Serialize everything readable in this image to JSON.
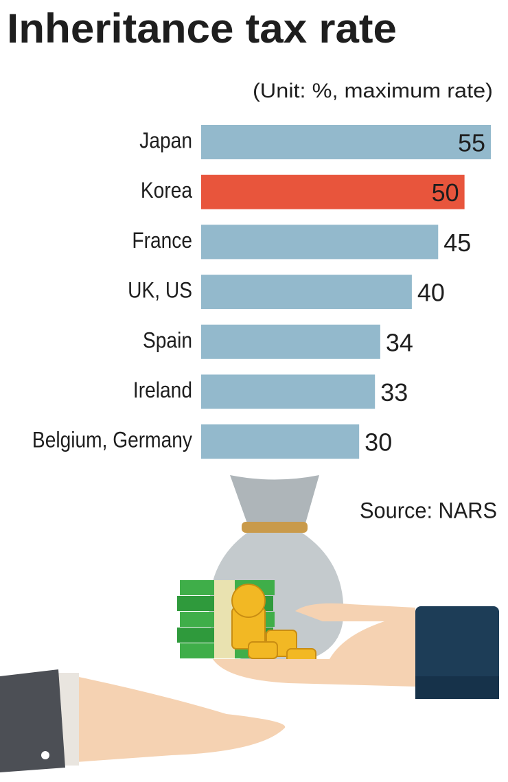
{
  "chart_data": {
    "type": "bar",
    "orientation": "horizontal",
    "title": "Inheritance tax rate",
    "subtitle": "(Unit: %, maximum rate)",
    "source": "Source: NARS",
    "categories": [
      "Japan",
      "Korea",
      "France",
      "UK, US",
      "Spain",
      "Ireland",
      "Belgium, Germany"
    ],
    "values": [
      55,
      50,
      45,
      40,
      34,
      33,
      30
    ],
    "color": "#93b9cc",
    "colors": [
      "#93b9cc",
      "#e8553c",
      "#93b9cc",
      "#93b9cc",
      "#93b9cc",
      "#93b9cc",
      "#93b9cc"
    ]
  }
}
